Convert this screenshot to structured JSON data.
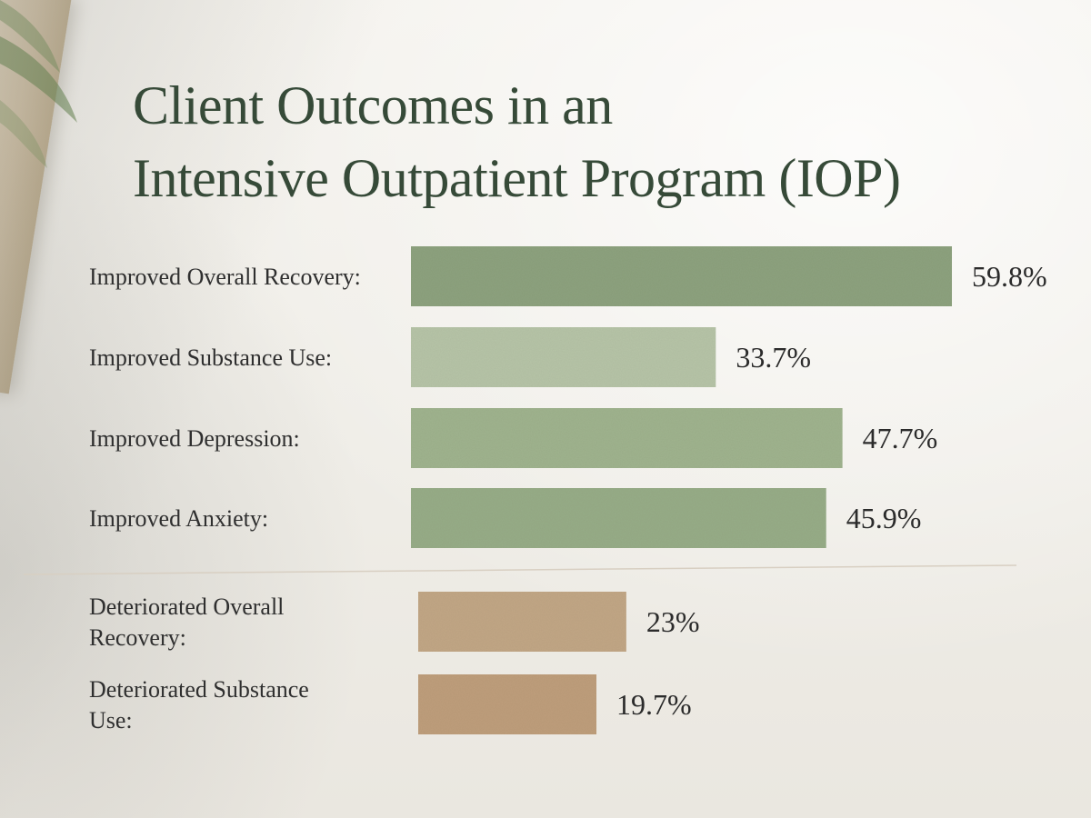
{
  "chart_data": {
    "type": "bar",
    "orientation": "horizontal",
    "title_lines": [
      "Client Outcomes in an",
      "Intensive Outpatient Program (IOP)"
    ],
    "categories": [
      [
        "Improved Overall Recovery:"
      ],
      [
        "Improved Substance Use:"
      ],
      [
        "Improved Depression:"
      ],
      [
        "Improved Anxiety:"
      ],
      [
        "Deteriorated Overall",
        "Recovery:"
      ],
      [
        "Deteriorated Substance",
        "Use:"
      ]
    ],
    "values": [
      59.8,
      33.7,
      47.7,
      45.9,
      23,
      19.7
    ],
    "value_labels": [
      "59.8%",
      "33.7%",
      "47.7%",
      "45.9%",
      "23%",
      "19.7%"
    ],
    "groups": [
      "improved",
      "improved",
      "improved",
      "improved",
      "deteriorated",
      "deteriorated"
    ],
    "colors": {
      "improved": [
        "#8ea37f",
        "#b7c5a8",
        "#a0b48f",
        "#98ad88"
      ],
      "deteriorated": [
        "#c2a786",
        "#bf9f7d"
      ],
      "title": "#364a38",
      "divider": "#d8cfc2"
    },
    "xlabel": "",
    "ylabel": "",
    "grid": false,
    "legend": "none",
    "divider_after_index": 3
  }
}
